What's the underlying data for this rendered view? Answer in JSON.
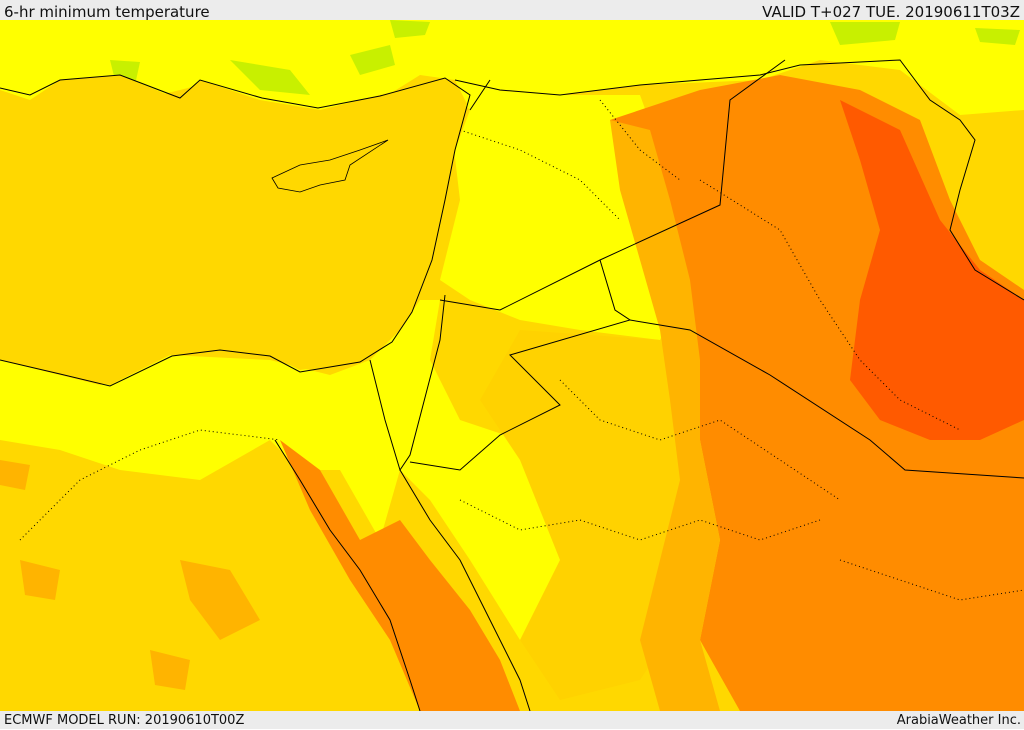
{
  "header": {
    "title": "6-hr minimum temperature",
    "valid": "VALID T+027 TUE. 20190611T03Z"
  },
  "footer": {
    "model_run": "ECMWF MODEL RUN: 20190610T00Z",
    "credit": "ArabiaWeather Inc."
  },
  "colors": {
    "sea": "#ffd800",
    "land_yellow": "#ffff00",
    "land_gold": "#ffd200",
    "light_orange": "#ffb400",
    "orange": "#ff8c00",
    "dark_orange": "#ff5a00",
    "cool_green": "#c8f000",
    "border_line": "#000000"
  },
  "map": {
    "region": "Eastern Mediterranean and Middle East",
    "variable": "minimum temperature"
  }
}
